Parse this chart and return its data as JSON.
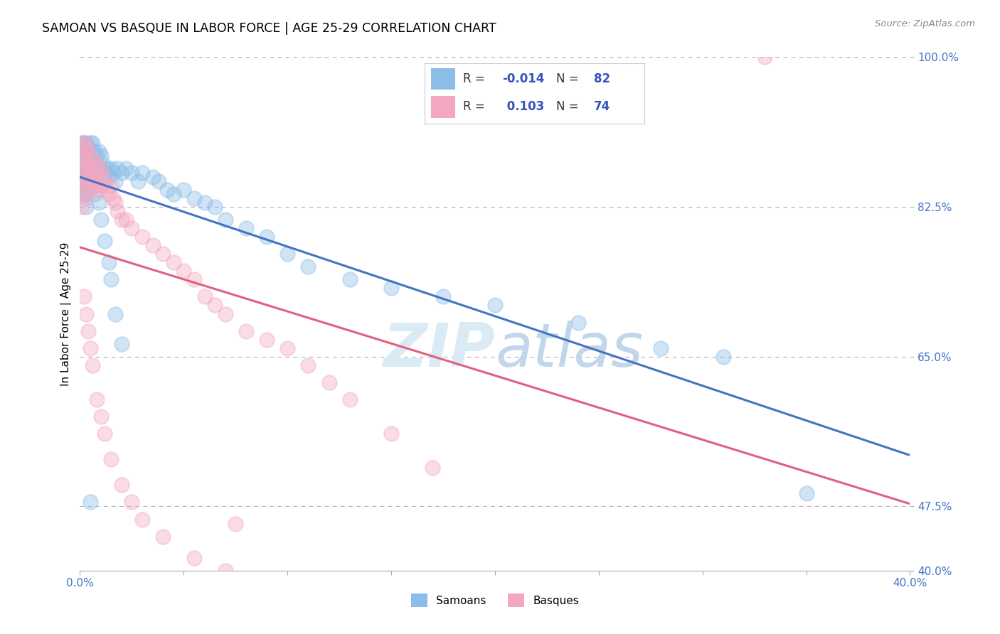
{
  "title": "SAMOAN VS BASQUE IN LABOR FORCE | AGE 25-29 CORRELATION CHART",
  "source": "Source: ZipAtlas.com",
  "ylabel": "In Labor Force | Age 25-29",
  "xlim": [
    0.0,
    0.4
  ],
  "ylim": [
    0.4,
    1.0
  ],
  "hlines": [
    1.0,
    0.825,
    0.65,
    0.475
  ],
  "samoans_color": "#8bbde8",
  "basques_color": "#f4a8c0",
  "samoans_line_color": "#4472c4",
  "basques_line_color": "#e06080",
  "legend_color": "#3355bb",
  "watermark_color": "#d5e8f5",
  "samoans_x": [
    0.001,
    0.001,
    0.001,
    0.001,
    0.001,
    0.001,
    0.001,
    0.002,
    0.002,
    0.002,
    0.002,
    0.002,
    0.003,
    0.003,
    0.003,
    0.003,
    0.003,
    0.003,
    0.004,
    0.004,
    0.004,
    0.004,
    0.005,
    0.005,
    0.005,
    0.006,
    0.006,
    0.006,
    0.007,
    0.007,
    0.007,
    0.008,
    0.008,
    0.009,
    0.009,
    0.01,
    0.01,
    0.011,
    0.012,
    0.013,
    0.014,
    0.015,
    0.016,
    0.017,
    0.018,
    0.02,
    0.022,
    0.025,
    0.028,
    0.03,
    0.035,
    0.038,
    0.042,
    0.045,
    0.05,
    0.055,
    0.06,
    0.065,
    0.07,
    0.08,
    0.09,
    0.1,
    0.11,
    0.13,
    0.15,
    0.175,
    0.2,
    0.24,
    0.28,
    0.31,
    0.35,
    0.005,
    0.006,
    0.007,
    0.008,
    0.009,
    0.01,
    0.012,
    0.014,
    0.015,
    0.017,
    0.02
  ],
  "samoans_y": [
    0.9,
    0.89,
    0.88,
    0.87,
    0.86,
    0.85,
    0.84,
    0.9,
    0.885,
    0.87,
    0.855,
    0.84,
    0.9,
    0.885,
    0.87,
    0.855,
    0.84,
    0.825,
    0.895,
    0.88,
    0.865,
    0.85,
    0.9,
    0.88,
    0.86,
    0.9,
    0.885,
    0.865,
    0.89,
    0.875,
    0.86,
    0.885,
    0.87,
    0.89,
    0.87,
    0.885,
    0.87,
    0.875,
    0.865,
    0.87,
    0.86,
    0.87,
    0.865,
    0.855,
    0.87,
    0.865,
    0.87,
    0.865,
    0.855,
    0.865,
    0.86,
    0.855,
    0.845,
    0.84,
    0.845,
    0.835,
    0.83,
    0.825,
    0.81,
    0.8,
    0.79,
    0.77,
    0.755,
    0.74,
    0.73,
    0.72,
    0.71,
    0.69,
    0.66,
    0.65,
    0.49,
    0.48,
    0.855,
    0.84,
    0.85,
    0.83,
    0.81,
    0.785,
    0.76,
    0.74,
    0.7,
    0.665
  ],
  "basques_x": [
    0.001,
    0.001,
    0.001,
    0.001,
    0.001,
    0.001,
    0.002,
    0.002,
    0.002,
    0.003,
    0.003,
    0.003,
    0.003,
    0.004,
    0.004,
    0.004,
    0.005,
    0.005,
    0.005,
    0.006,
    0.006,
    0.007,
    0.007,
    0.008,
    0.008,
    0.009,
    0.009,
    0.01,
    0.01,
    0.011,
    0.012,
    0.013,
    0.014,
    0.015,
    0.016,
    0.017,
    0.018,
    0.02,
    0.022,
    0.025,
    0.03,
    0.035,
    0.04,
    0.045,
    0.05,
    0.055,
    0.06,
    0.065,
    0.07,
    0.08,
    0.09,
    0.1,
    0.11,
    0.12,
    0.13,
    0.15,
    0.17,
    0.002,
    0.003,
    0.004,
    0.005,
    0.006,
    0.008,
    0.01,
    0.012,
    0.015,
    0.02,
    0.025,
    0.03,
    0.04,
    0.055,
    0.07,
    0.33,
    0.075
  ],
  "basques_y": [
    0.9,
    0.885,
    0.87,
    0.855,
    0.84,
    0.825,
    0.9,
    0.88,
    0.86,
    0.895,
    0.875,
    0.855,
    0.835,
    0.89,
    0.87,
    0.85,
    0.885,
    0.865,
    0.845,
    0.88,
    0.86,
    0.87,
    0.85,
    0.875,
    0.855,
    0.865,
    0.845,
    0.87,
    0.85,
    0.86,
    0.85,
    0.845,
    0.84,
    0.85,
    0.835,
    0.83,
    0.82,
    0.81,
    0.81,
    0.8,
    0.79,
    0.78,
    0.77,
    0.76,
    0.75,
    0.74,
    0.72,
    0.71,
    0.7,
    0.68,
    0.67,
    0.66,
    0.64,
    0.62,
    0.6,
    0.56,
    0.52,
    0.72,
    0.7,
    0.68,
    0.66,
    0.64,
    0.6,
    0.58,
    0.56,
    0.53,
    0.5,
    0.48,
    0.46,
    0.44,
    0.415,
    0.4,
    1.0,
    0.455
  ]
}
